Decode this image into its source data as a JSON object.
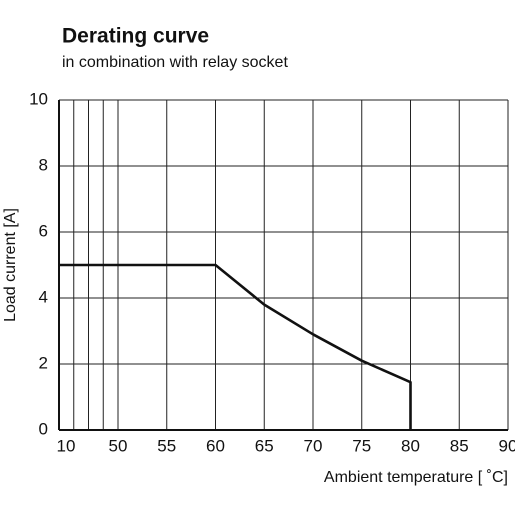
{
  "chart_data": {
    "type": "line",
    "title": "Derating curve",
    "subtitle": "in combination with relay socket",
    "x_label": "Ambient temperature [ ˚C]",
    "y_label": "Load current [A]",
    "x": [
      10,
      60,
      65,
      70,
      75,
      80,
      80
    ],
    "values": [
      5,
      5,
      3.8,
      2.9,
      2.1,
      1.45,
      0
    ],
    "color": "#111111",
    "xlim": [
      10,
      90
    ],
    "x_compressed_range": [
      10,
      50
    ],
    "xticks": [
      10,
      50,
      55,
      60,
      65,
      70,
      75,
      80,
      85,
      90
    ],
    "x_minor_grid": [
      20,
      30,
      40
    ],
    "ylim": [
      0,
      10
    ],
    "yticks": [
      0,
      2,
      4,
      6,
      8,
      10
    ],
    "grid": true
  }
}
